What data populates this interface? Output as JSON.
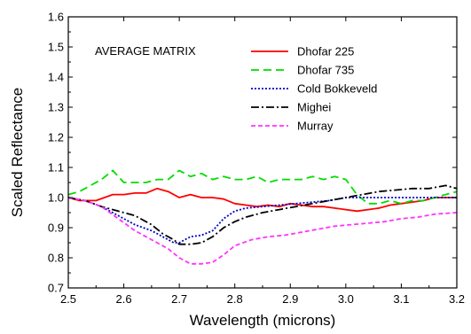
{
  "chart_data": {
    "type": "line",
    "xlabel": "Wavelength (microns)",
    "ylabel": "Scaled  Reflectance",
    "annotation": "AVERAGE MATRIX",
    "xlim": [
      2.5,
      3.2
    ],
    "ylim": [
      0.7,
      1.6
    ],
    "xticks": [
      "2.5",
      "2.6",
      "2.7",
      "2.8",
      "2.9",
      "3.0",
      "3.1",
      "3.2"
    ],
    "yticks": [
      "0.7",
      "0.8",
      "0.9",
      "1.0",
      "1.1",
      "1.2",
      "1.3",
      "1.4",
      "1.5",
      "1.6"
    ],
    "grid": false,
    "legend_position": "top-right",
    "series": [
      {
        "name": "Dhofar 225",
        "color": "#ff0000",
        "dash": "solid",
        "x": [
          2.5,
          2.52,
          2.55,
          2.58,
          2.6,
          2.62,
          2.64,
          2.66,
          2.68,
          2.7,
          2.72,
          2.74,
          2.76,
          2.78,
          2.8,
          2.82,
          2.84,
          2.86,
          2.88,
          2.9,
          2.92,
          2.94,
          2.96,
          2.98,
          3.0,
          3.02,
          3.04,
          3.06,
          3.08,
          3.1,
          3.12,
          3.14,
          3.16,
          3.18,
          3.2
        ],
        "y": [
          1.0,
          0.99,
          0.99,
          1.01,
          1.01,
          1.015,
          1.015,
          1.03,
          1.02,
          1.0,
          1.01,
          1.0,
          1.0,
          0.995,
          0.98,
          0.975,
          0.97,
          0.975,
          0.97,
          0.98,
          0.975,
          0.97,
          0.97,
          0.965,
          0.96,
          0.955,
          0.96,
          0.965,
          0.975,
          0.98,
          0.985,
          0.99,
          1.0,
          1.0,
          1.0
        ]
      },
      {
        "name": "Dhofar 735",
        "color": "#00dd00",
        "dash": "long",
        "x": [
          2.5,
          2.52,
          2.54,
          2.56,
          2.58,
          2.6,
          2.62,
          2.64,
          2.66,
          2.68,
          2.7,
          2.72,
          2.74,
          2.76,
          2.78,
          2.8,
          2.82,
          2.84,
          2.86,
          2.88,
          2.9,
          2.92,
          2.94,
          2.96,
          2.98,
          3.0,
          3.02,
          3.04,
          3.06,
          3.08,
          3.1,
          3.12,
          3.14,
          3.16,
          3.18,
          3.2
        ],
        "y": [
          1.01,
          1.02,
          1.04,
          1.06,
          1.09,
          1.05,
          1.05,
          1.05,
          1.06,
          1.06,
          1.09,
          1.07,
          1.08,
          1.06,
          1.07,
          1.06,
          1.06,
          1.07,
          1.05,
          1.06,
          1.06,
          1.06,
          1.07,
          1.06,
          1.07,
          1.06,
          1.01,
          0.98,
          0.98,
          0.99,
          0.98,
          0.99,
          0.99,
          1.0,
          1.01,
          1.02
        ]
      },
      {
        "name": "Cold Bokkeveld",
        "color": "#0000cc",
        "dash": "dot",
        "x": [
          2.5,
          2.53,
          2.56,
          2.59,
          2.62,
          2.65,
          2.67,
          2.69,
          2.7,
          2.72,
          2.74,
          2.76,
          2.78,
          2.8,
          2.82,
          2.85,
          2.88,
          2.91,
          2.94,
          2.97,
          3.0,
          3.03,
          3.06,
          3.09,
          3.12,
          3.15,
          3.18,
          3.2
        ],
        "y": [
          1.0,
          0.99,
          0.97,
          0.94,
          0.91,
          0.89,
          0.87,
          0.85,
          0.85,
          0.87,
          0.875,
          0.89,
          0.93,
          0.955,
          0.965,
          0.97,
          0.975,
          0.98,
          0.985,
          0.99,
          1.0,
          1.0,
          1.0,
          1.0,
          1.0,
          1.0,
          1.0,
          1.0
        ]
      },
      {
        "name": "Mighei",
        "color": "#000000",
        "dash": "dashdot",
        "x": [
          2.5,
          2.53,
          2.56,
          2.59,
          2.62,
          2.65,
          2.67,
          2.69,
          2.7,
          2.72,
          2.74,
          2.76,
          2.78,
          2.8,
          2.82,
          2.85,
          2.88,
          2.91,
          2.94,
          2.97,
          3.0,
          3.03,
          3.06,
          3.09,
          3.12,
          3.15,
          3.18,
          3.2
        ],
        "y": [
          1.0,
          0.99,
          0.97,
          0.955,
          0.94,
          0.91,
          0.88,
          0.86,
          0.845,
          0.845,
          0.85,
          0.87,
          0.9,
          0.92,
          0.935,
          0.95,
          0.96,
          0.97,
          0.98,
          0.99,
          1.0,
          1.01,
          1.02,
          1.025,
          1.03,
          1.03,
          1.04,
          1.03
        ]
      },
      {
        "name": "Murray",
        "color": "#ff33ff",
        "dash": "short",
        "x": [
          2.5,
          2.53,
          2.56,
          2.59,
          2.62,
          2.65,
          2.68,
          2.7,
          2.72,
          2.74,
          2.76,
          2.78,
          2.8,
          2.83,
          2.86,
          2.89,
          2.92,
          2.95,
          2.98,
          3.01,
          3.04,
          3.07,
          3.1,
          3.13,
          3.16,
          3.2
        ],
        "y": [
          1.0,
          0.99,
          0.97,
          0.93,
          0.89,
          0.86,
          0.83,
          0.8,
          0.78,
          0.78,
          0.785,
          0.81,
          0.84,
          0.86,
          0.87,
          0.875,
          0.885,
          0.895,
          0.905,
          0.91,
          0.915,
          0.92,
          0.93,
          0.935,
          0.945,
          0.95
        ]
      }
    ]
  }
}
